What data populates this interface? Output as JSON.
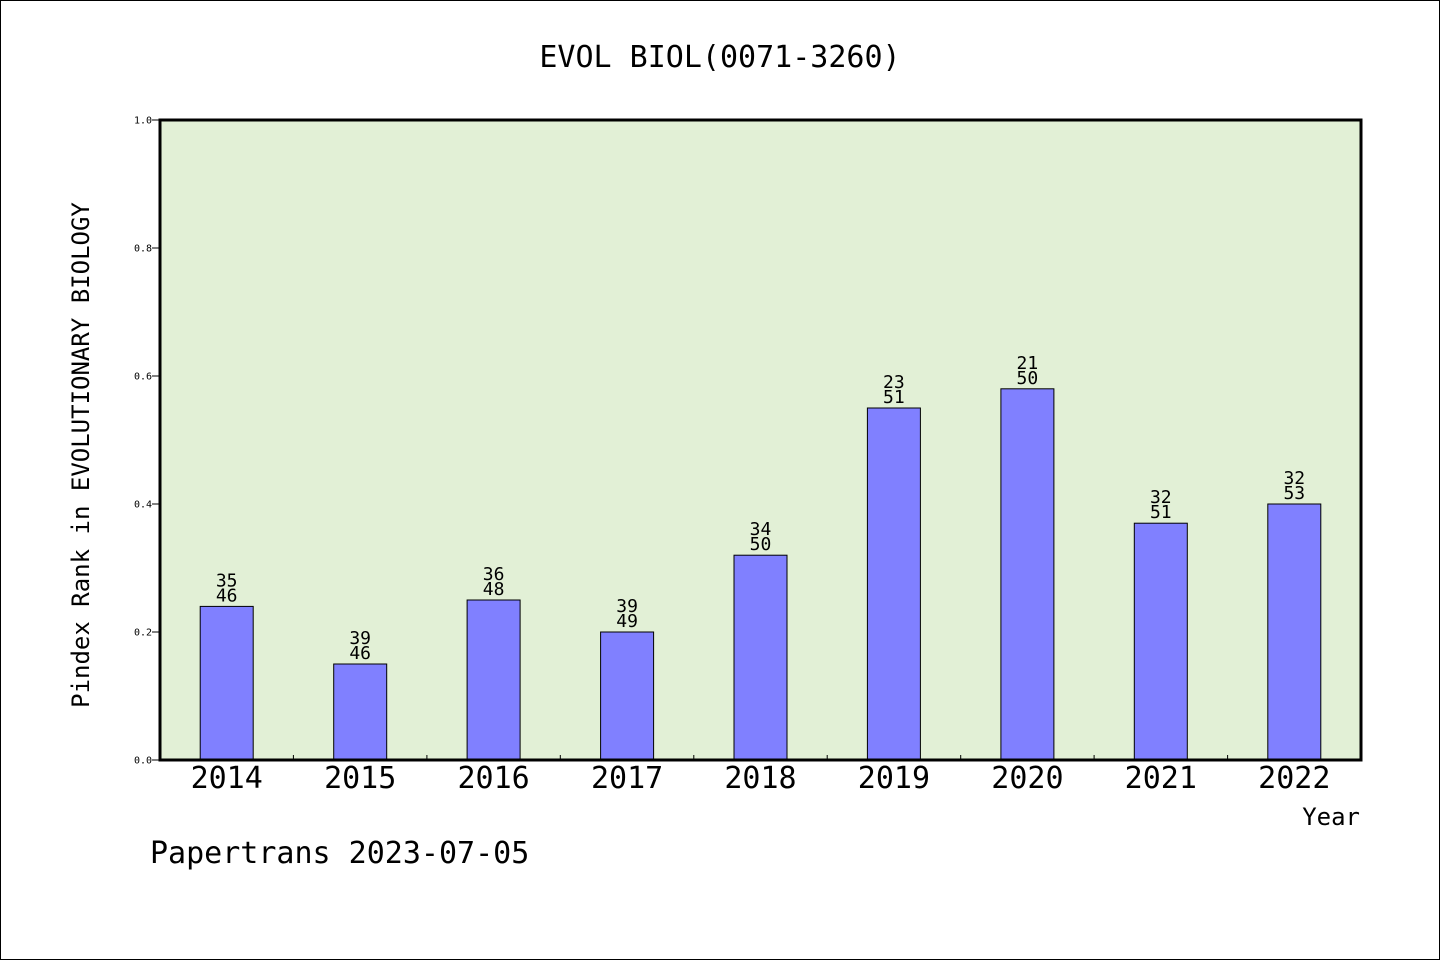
{
  "chart_data": {
    "type": "bar",
    "title": "EVOL BIOL(0071-3260)",
    "xlabel": "Year",
    "ylabel": "Pindex Rank in EVOLUTIONARY BIOLOGY",
    "categories": [
      "2014",
      "2015",
      "2016",
      "2017",
      "2018",
      "2019",
      "2020",
      "2021",
      "2022"
    ],
    "values": [
      0.24,
      0.15,
      0.25,
      0.2,
      0.32,
      0.55,
      0.58,
      0.37,
      0.4
    ],
    "rank_labels": [
      "35",
      "39",
      "36",
      "39",
      "34",
      "23",
      "21",
      "32",
      "32"
    ],
    "total_labels": [
      "46",
      "46",
      "48",
      "49",
      "50",
      "51",
      "50",
      "51",
      "53"
    ],
    "ylim": [
      0,
      1.0
    ],
    "yticks": [
      "0.0",
      "0.2",
      "0.4",
      "0.6",
      "0.8",
      "1.0"
    ],
    "grid": false,
    "legend": "none",
    "colors": {
      "bar": "#8080ff",
      "plot_background": "#e2f0d6"
    }
  },
  "footer": "Papertrans 2023-07-05"
}
